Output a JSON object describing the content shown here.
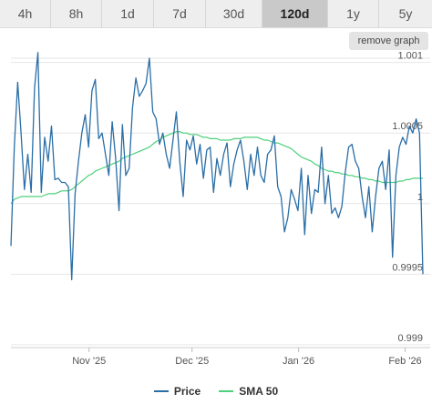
{
  "range_buttons": [
    {
      "label": "4h",
      "active": false
    },
    {
      "label": "8h",
      "active": false
    },
    {
      "label": "1d",
      "active": false
    },
    {
      "label": "7d",
      "active": false
    },
    {
      "label": "30d",
      "active": false
    },
    {
      "label": "120d",
      "active": true
    },
    {
      "label": "1y",
      "active": false
    },
    {
      "label": "5y",
      "active": false
    }
  ],
  "remove_graph_label": "remove graph",
  "colors": {
    "price": "#2a6ea6",
    "sma": "#4cd07a",
    "grid": "#e6e6e6"
  },
  "chart_data": {
    "type": "line",
    "title": "",
    "xlabel": "",
    "ylabel": "",
    "ylim": [
      0.99898,
      1.00103
    ],
    "y_ticks": [
      {
        "value": 0.999,
        "label": "0.999"
      },
      {
        "value": 0.9995,
        "label": "0.9995"
      },
      {
        "value": 1.0,
        "label": "1"
      },
      {
        "value": 1.0005,
        "label": "1.0005"
      },
      {
        "value": 1.001,
        "label": "1.001"
      }
    ],
    "x_ticks": [
      {
        "value": 22,
        "label": "Nov '25"
      },
      {
        "value": 51,
        "label": "Dec '25"
      },
      {
        "value": 81,
        "label": "Jan '26"
      },
      {
        "value": 111,
        "label": "Feb '26"
      }
    ],
    "xlim": [
      0,
      116
    ],
    "legend": "bottom-center",
    "series": [
      {
        "name": "Price",
        "values": [
          0.9997,
          1.0004,
          1.00086,
          1.0005,
          1.0001,
          1.00035,
          1.00008,
          1.00082,
          1.00107,
          1.00008,
          1.00047,
          1.0003,
          1.00055,
          1.00017,
          1.00018,
          1.00015,
          1.00015,
          1.00012,
          0.99946,
          1.00007,
          1.0003,
          1.0005,
          1.00063,
          1.0004,
          1.0008,
          1.00088,
          1.00046,
          1.0005,
          1.00035,
          1.0002,
          1.00058,
          1.00032,
          0.99995,
          1.00056,
          1.0002,
          1.00025,
          1.00068,
          1.00089,
          1.00076,
          1.0008,
          1.00085,
          1.00103,
          1.00065,
          1.0006,
          1.00042,
          1.0005,
          1.00035,
          1.00025,
          1.00045,
          1.00065,
          1.0003,
          1.00005,
          1.00045,
          1.00038,
          1.00048,
          1.00028,
          1.00042,
          1.00018,
          1.00038,
          1.0004,
          1.00008,
          1.00032,
          1.0002,
          1.00035,
          1.00043,
          1.00012,
          1.00028,
          1.00038,
          1.00045,
          1.0003,
          1.0001,
          1.00035,
          1.0002,
          1.0004,
          1.0002,
          1.00015,
          1.00035,
          1.00038,
          1.00048,
          1.00012,
          1.00005,
          0.9998,
          0.9999,
          1.0001,
          1.00003,
          0.99995,
          1.00025,
          0.99978,
          1.0002,
          0.99993,
          1.0001,
          1.00008,
          1.0004,
          1.0,
          1.0002,
          0.99993,
          0.99997,
          0.9999,
          0.99998,
          1.00022,
          1.0004,
          1.00042,
          1.0003,
          1.00025,
          1.00005,
          0.9999,
          1.00012,
          0.9998,
          1.00005,
          1.00025,
          1.0003,
          1.0001,
          1.00038,
          0.99962,
          1.0002,
          1.0004,
          1.00047,
          1.00042,
          1.00055,
          1.0005,
          1.0006,
          1.0005,
          0.9995
        ],
        "color": "#2a6ea6"
      },
      {
        "name": "SMA 50",
        "values": [
          1.0,
          1.00003,
          1.00004,
          1.00005,
          1.00005,
          1.00005,
          1.00005,
          1.00005,
          1.00005,
          1.00005,
          1.00006,
          1.00007,
          1.00007,
          1.00007,
          1.00008,
          1.00009,
          1.00009,
          1.00009,
          1.0001,
          1.00012,
          1.00014,
          1.00016,
          1.00018,
          1.0002,
          1.00021,
          1.00023,
          1.00024,
          1.00025,
          1.00026,
          1.00027,
          1.00028,
          1.00029,
          1.0003,
          1.00032,
          1.00033,
          1.00034,
          1.00035,
          1.00036,
          1.00037,
          1.00038,
          1.00039,
          1.0004,
          1.00042,
          1.00044,
          1.00045,
          1.00047,
          1.00048,
          1.00049,
          1.0005,
          1.00051,
          1.00051,
          1.0005,
          1.0005,
          1.00049,
          1.00049,
          1.00049,
          1.00048,
          1.00047,
          1.00047,
          1.00046,
          1.00046,
          1.00046,
          1.00045,
          1.00045,
          1.00045,
          1.00045,
          1.00046,
          1.00046,
          1.00046,
          1.00047,
          1.00047,
          1.00047,
          1.00047,
          1.00047,
          1.00046,
          1.00045,
          1.00045,
          1.00044,
          1.00043,
          1.00043,
          1.00042,
          1.00041,
          1.0004,
          1.00039,
          1.00037,
          1.00035,
          1.00033,
          1.00032,
          1.00031,
          1.0003,
          1.00028,
          1.00027,
          1.00025,
          1.00024,
          1.00023,
          1.00023,
          1.00022,
          1.00022,
          1.00021,
          1.00021,
          1.0002,
          1.0002,
          1.00019,
          1.00019,
          1.00018,
          1.00018,
          1.00017,
          1.00017,
          1.00016,
          1.00016,
          1.00015,
          1.00015,
          1.00015,
          1.00015,
          1.00015,
          1.00016,
          1.00016,
          1.00017,
          1.00017,
          1.00018,
          1.00018,
          1.00018,
          1.00018
        ],
        "color": "#4cd07a"
      }
    ]
  }
}
